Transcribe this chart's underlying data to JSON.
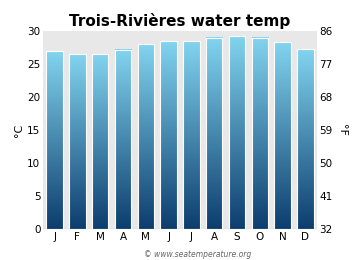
{
  "title": "Trois-Rivières water temp",
  "months": [
    "J",
    "F",
    "M",
    "A",
    "M",
    "J",
    "J",
    "A",
    "S",
    "O",
    "N",
    "D"
  ],
  "values_c": [
    27.0,
    26.5,
    26.5,
    27.2,
    28.0,
    28.5,
    28.5,
    29.0,
    29.3,
    29.0,
    28.3,
    27.3
  ],
  "ylim_c": [
    0,
    30
  ],
  "yticks_c": [
    0,
    5,
    10,
    15,
    20,
    25,
    30
  ],
  "yticks_f": [
    32,
    41,
    50,
    59,
    68,
    77,
    86
  ],
  "ylabel_left": "°C",
  "ylabel_right": "°F",
  "bar_color_top": "#82d4ef",
  "bar_color_bottom": "#0c3d6e",
  "bg_color": "#e8e8e8",
  "fig_bg": "#ffffff",
  "watermark": "© www.seatemperature.org",
  "title_fontsize": 11,
  "axis_fontsize": 7.5,
  "label_fontsize": 8,
  "bar_width": 0.72,
  "bar_gap_color": "#ffffff"
}
